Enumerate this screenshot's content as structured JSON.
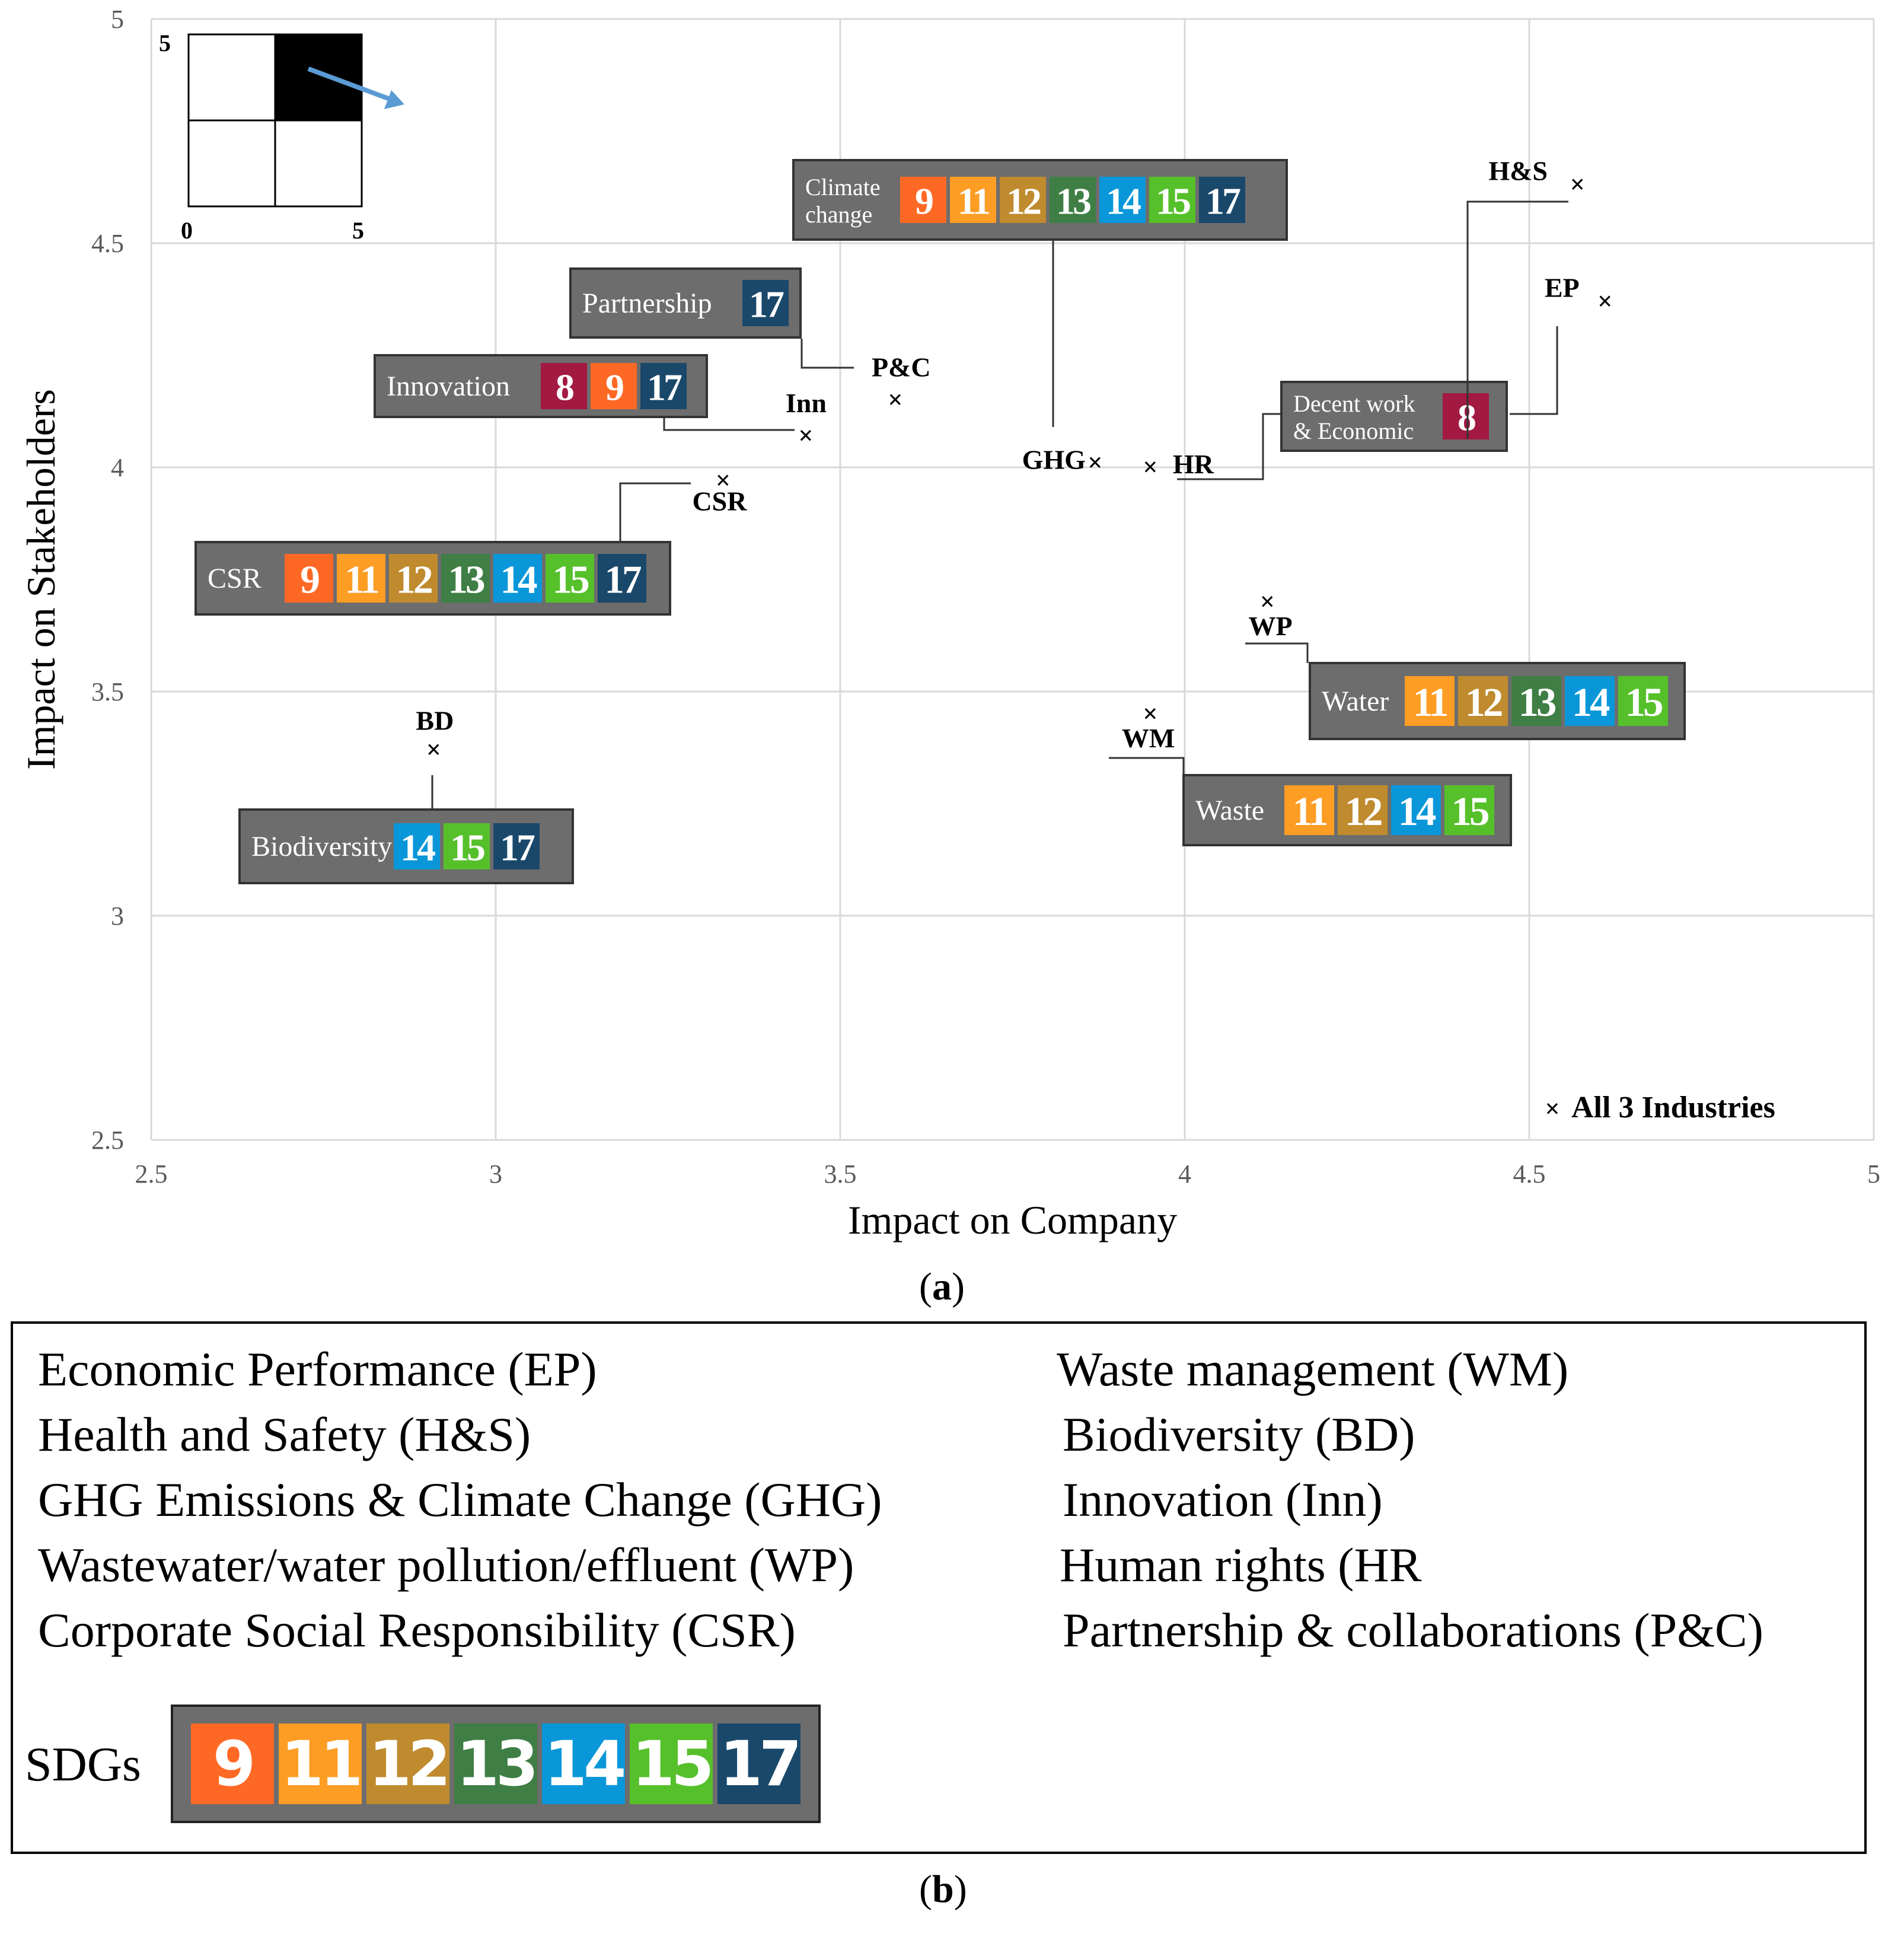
{
  "chart_data": {
    "type": "scatter",
    "xlabel": "Impact on Company",
    "ylabel": "Impact on Stakeholders",
    "xlim": [
      2.5,
      5
    ],
    "ylim": [
      2.5,
      5
    ],
    "xticks": [
      "2.5",
      "3",
      "3.5",
      "4",
      "4.5",
      "5"
    ],
    "yticks": [
      "2.5",
      "3",
      "3.5",
      "4",
      "4.5",
      "5"
    ],
    "grid": true,
    "legend": {
      "label": "All 3 Industries",
      "marker": "×",
      "position": "bottom-right"
    },
    "points": [
      {
        "label": "H&S",
        "x": 4.57,
        "y": 4.63
      },
      {
        "label": "EP",
        "x": 4.61,
        "y": 4.37
      },
      {
        "label": "P&C",
        "x": 3.58,
        "y": 4.15
      },
      {
        "label": "Inn",
        "x": 3.45,
        "y": 4.07
      },
      {
        "label": "GHG",
        "x": 3.87,
        "y": 4.01
      },
      {
        "label": "HR",
        "x": 3.95,
        "y": 4.0
      },
      {
        "label": "CSR",
        "x": 3.33,
        "y": 3.97
      },
      {
        "label": "WP",
        "x": 4.12,
        "y": 3.7
      },
      {
        "label": "WM",
        "x": 3.95,
        "y": 3.45
      },
      {
        "label": "BD",
        "x": 2.91,
        "y": 3.37
      }
    ],
    "sdg_boxes": [
      {
        "title": [
          "Climate",
          "change"
        ],
        "sdgs": [
          "9",
          "11",
          "12",
          "13",
          "14",
          "15",
          "17"
        ]
      },
      {
        "title": [
          "Partnership"
        ],
        "sdgs": [
          "17"
        ]
      },
      {
        "title": [
          "Innovation"
        ],
        "sdgs": [
          "8",
          "9",
          "17"
        ]
      },
      {
        "title": [
          "CSR"
        ],
        "sdgs": [
          "9",
          "11",
          "12",
          "13",
          "14",
          "15",
          "17"
        ]
      },
      {
        "title": [
          "Decent work",
          "& Economic"
        ],
        "sdgs": [
          "8"
        ]
      },
      {
        "title": [
          "Water"
        ],
        "sdgs": [
          "11",
          "12",
          "13",
          "14",
          "15"
        ]
      },
      {
        "title": [
          "Waste"
        ],
        "sdgs": [
          "11",
          "12",
          "14",
          "15"
        ]
      },
      {
        "title": [
          "Biodiversity"
        ],
        "sdgs": [
          "14",
          "15",
          "17"
        ]
      }
    ],
    "inset": {
      "min": "0",
      "max": "5",
      "ymax": "5"
    }
  },
  "colors": {
    "sdg": {
      "8": "#A21942",
      "9": "#FD6925",
      "11": "#FD9D24",
      "12": "#BF8B2E",
      "13": "#3F7E44",
      "14": "#0A97D9",
      "15": "#56C02B",
      "17": "#19486A"
    },
    "box_bg": "#6d6d6d",
    "arrow": "#5b9bd5",
    "grid": "#d9d9d9"
  },
  "captions": {
    "a": "a",
    "b": "b"
  },
  "legend_entries": {
    "left": [
      "Economic Performance (EP)",
      "Health and Safety (H&S)",
      "GHG Emissions & Climate Change (GHG)",
      "Wastewater/water pollution/effluent (WP)",
      "Corporate Social Responsibility (CSR)"
    ],
    "right": [
      "Waste management (WM)",
      "Biodiversity (BD)",
      "Innovation (Inn)",
      "Human rights (HR",
      "Partnership & collaborations (P&C)"
    ]
  },
  "sdg_legend": {
    "label": "SDGs",
    "sdgs": [
      "9",
      "11",
      "12",
      "13",
      "14",
      "15",
      "17"
    ]
  }
}
